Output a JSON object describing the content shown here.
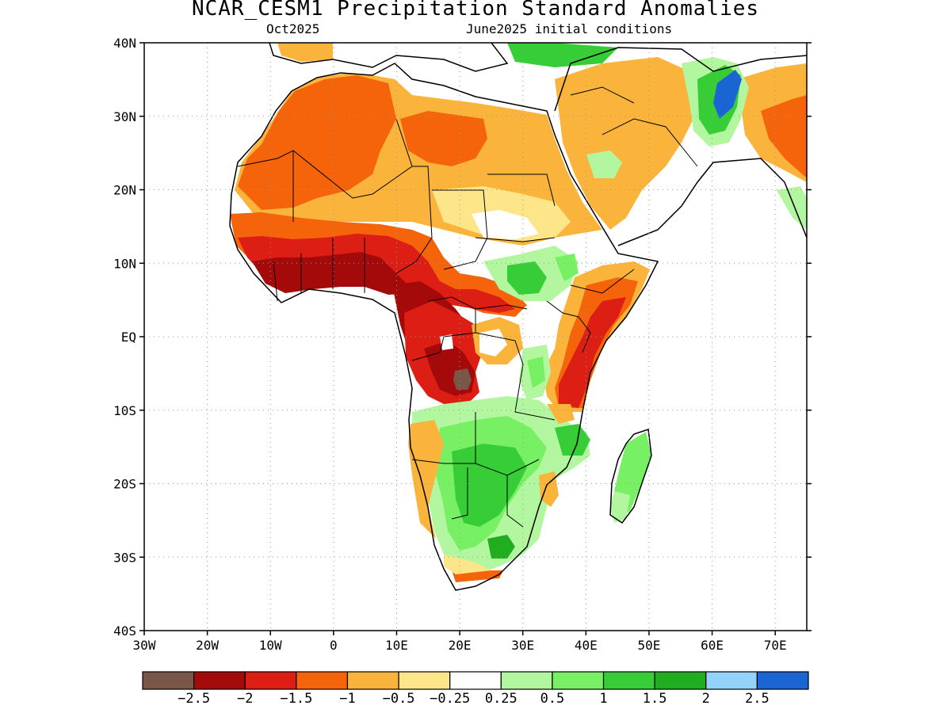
{
  "title": "NCAR_CESM1 Precipitation Standard Anomalies",
  "subtitle_left": "Oct2025",
  "subtitle_right": "June2025 initial conditions",
  "axes": {
    "y_ticks": [
      {
        "lat": 40,
        "label": "40N"
      },
      {
        "lat": 30,
        "label": "30N"
      },
      {
        "lat": 20,
        "label": "20N"
      },
      {
        "lat": 10,
        "label": "10N"
      },
      {
        "lat": 0,
        "label": "EQ"
      },
      {
        "lat": -10,
        "label": "10S"
      },
      {
        "lat": -20,
        "label": "20S"
      },
      {
        "lat": -30,
        "label": "30S"
      },
      {
        "lat": -40,
        "label": "40S"
      }
    ],
    "x_ticks": [
      {
        "lon": -30,
        "label": "30W"
      },
      {
        "lon": -20,
        "label": "20W"
      },
      {
        "lon": -10,
        "label": "10W"
      },
      {
        "lon": 0,
        "label": "0"
      },
      {
        "lon": 10,
        "label": "10E"
      },
      {
        "lon": 20,
        "label": "20E"
      },
      {
        "lon": 30,
        "label": "30E"
      },
      {
        "lon": 40,
        "label": "40E"
      },
      {
        "lon": 50,
        "label": "50E"
      },
      {
        "lon": 60,
        "label": "60E"
      },
      {
        "lon": 70,
        "label": "70E"
      }
    ],
    "lon_range": [
      -30,
      75
    ],
    "lat_range": [
      -40,
      40
    ],
    "grid": "dotted"
  },
  "colorbar": {
    "colors": [
      "#7a5648",
      "#a50a0a",
      "#dc1e14",
      "#f5640a",
      "#fab43c",
      "#fde68a",
      "#ffffff",
      "#b2f7a0",
      "#78f064",
      "#36cd36",
      "#20ad20",
      "#94d2fa",
      "#1a64d4"
    ],
    "labels": [
      "−2.5",
      "−2",
      "−1.5",
      "−1",
      "−0.5",
      "−0.25",
      "0.25",
      "0.5",
      "1",
      "1.5",
      "2",
      "2.5"
    ]
  },
  "colors": {
    "extreme_dry": "#7a5648",
    "very_dry": "#a50a0a",
    "dry_2": "#dc1e14",
    "dry_1": "#f5640a",
    "dry_05": "#fab43c",
    "dry_025": "#fde68a",
    "neutral": "#ffffff",
    "wet_025": "#b2f7a0",
    "wet_05": "#78f064",
    "wet_1": "#36cd36",
    "wet_15": "#20ad20",
    "wet_2": "#94d2fa",
    "wet_25": "#1a64d4"
  }
}
